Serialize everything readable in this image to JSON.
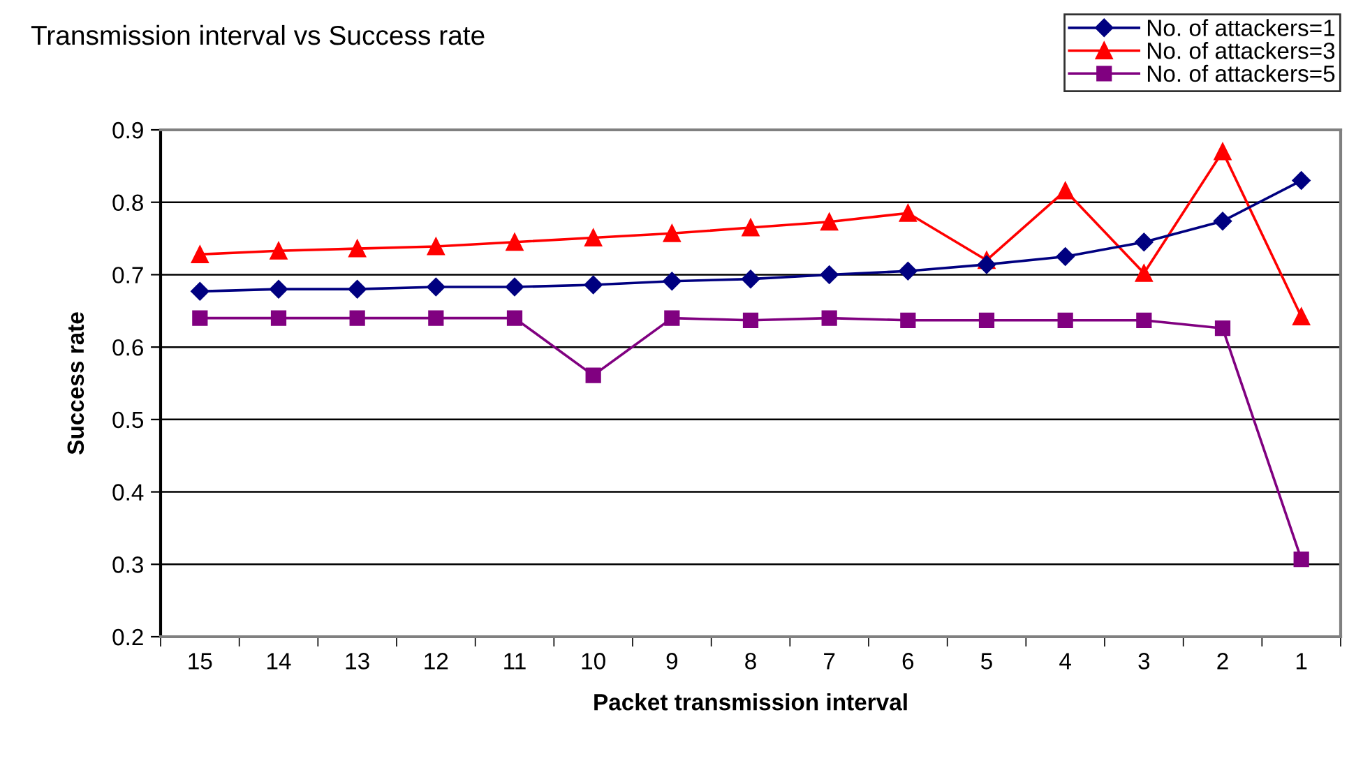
{
  "chart_data": {
    "type": "line",
    "title": "Transmission interval vs Success rate",
    "xlabel": "Packet transmission interval",
    "ylabel": "Success rate",
    "categories": [
      "15",
      "14",
      "13",
      "12",
      "11",
      "10",
      "9",
      "8",
      "7",
      "6",
      "5",
      "4",
      "3",
      "2",
      "1"
    ],
    "series": [
      {
        "name": "No. of attackers=1",
        "color": "#000080",
        "marker": "diamond",
        "values": [
          0.677,
          0.68,
          0.68,
          0.683,
          0.683,
          0.686,
          0.691,
          0.694,
          0.7,
          0.705,
          0.714,
          0.725,
          0.745,
          0.774,
          0.83
        ]
      },
      {
        "name": "No. of attackers=3",
        "color": "#ff0000",
        "marker": "triangle",
        "values": [
          0.728,
          0.733,
          0.736,
          0.739,
          0.745,
          0.751,
          0.757,
          0.765,
          0.773,
          0.785,
          0.72,
          0.816,
          0.702,
          0.87,
          0.642
        ]
      },
      {
        "name": "No. of attackers=5",
        "color": "#800080",
        "marker": "square",
        "values": [
          0.64,
          0.64,
          0.64,
          0.64,
          0.64,
          0.561,
          0.64,
          0.637,
          0.64,
          0.637,
          0.637,
          0.637,
          0.637,
          0.626,
          0.307
        ]
      }
    ],
    "ylim": [
      0.2,
      0.9
    ],
    "yticks": [
      0.2,
      0.3,
      0.4,
      0.5,
      0.6,
      0.7,
      0.8,
      0.9
    ],
    "grid": "y",
    "legend": "top right"
  }
}
